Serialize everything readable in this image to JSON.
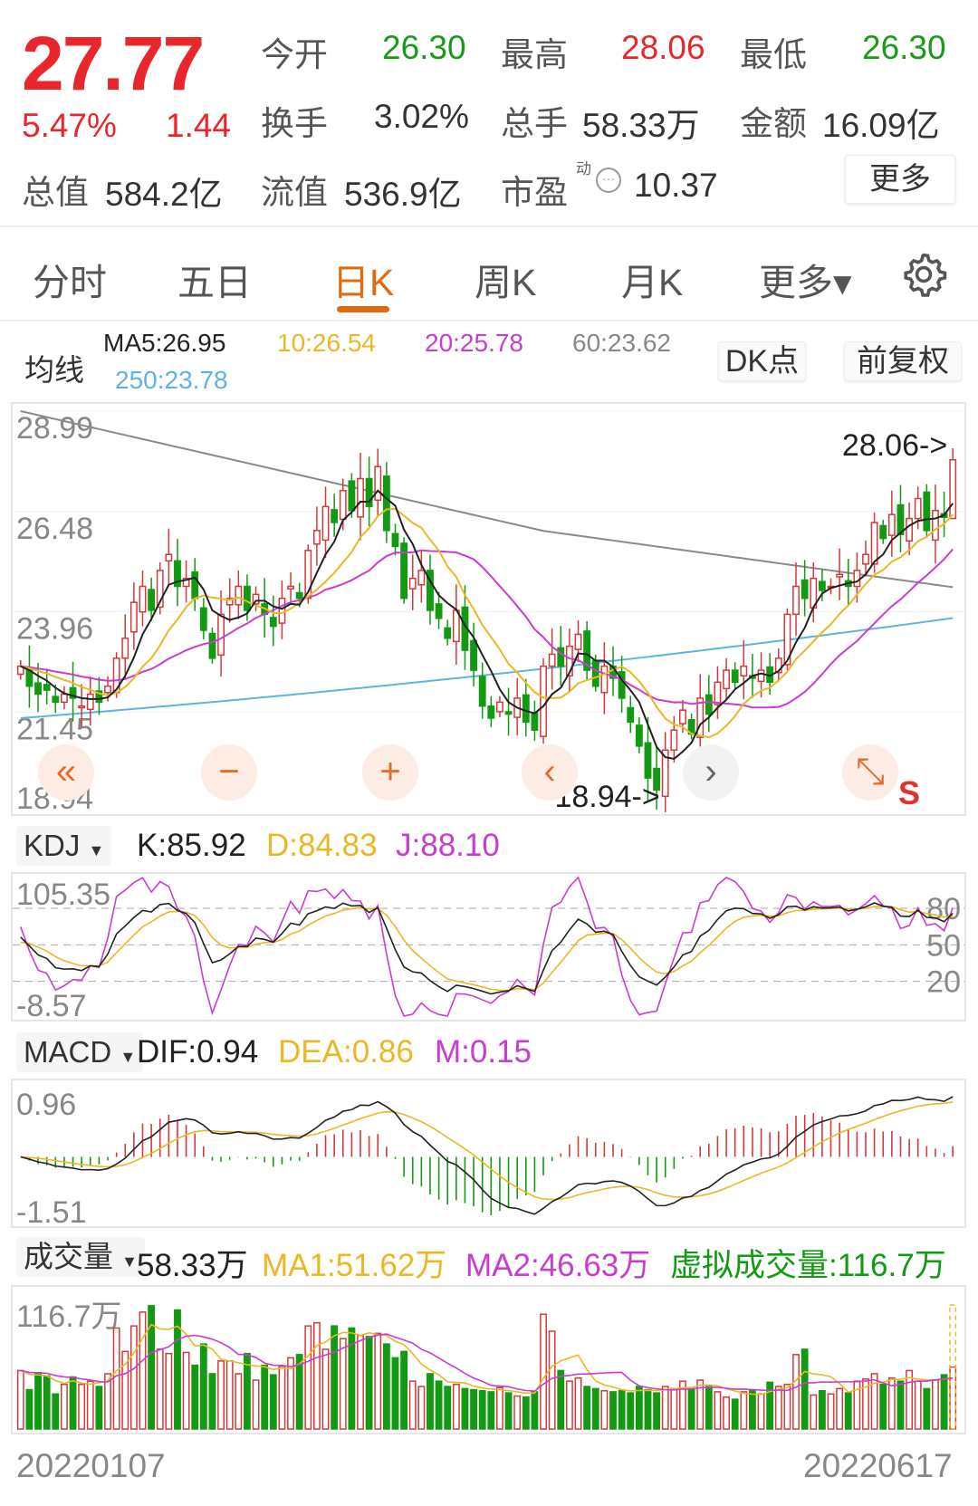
{
  "quote": {
    "price": "27.77",
    "change_pct": "5.47%",
    "change": "1.44",
    "open_label": "今开",
    "open": "26.30",
    "high_label": "最高",
    "high": "28.06",
    "low_label": "最低",
    "low": "26.30",
    "turnover_label": "换手",
    "turnover": "3.02%",
    "volume_label": "总手",
    "volume": "58.33万",
    "amount_label": "金额",
    "amount": "16.09亿",
    "mktcap_label": "总值",
    "mktcap": "584.2亿",
    "float_label": "流值",
    "float": "536.9亿",
    "pe_label": "市盈",
    "pe_sup": "动",
    "pe": "10.37",
    "more": "更多"
  },
  "tabs": [
    {
      "label": "分时"
    },
    {
      "label": "五日"
    },
    {
      "label": "日K",
      "active": true
    },
    {
      "label": "周K"
    },
    {
      "label": "月K"
    },
    {
      "label": "更多▾"
    }
  ],
  "ma": {
    "label": "均线",
    "ma5": "MA5:26.95",
    "ma10": "10:26.54",
    "ma20": "20:25.78",
    "ma60": "60:23.62",
    "ma250": "250:23.78",
    "dk": "DK点",
    "adjust": "前复权"
  },
  "colors": {
    "up": "#d23a3a",
    "down": "#129a12",
    "ma5": "#222222",
    "ma10": "#e9b824",
    "ma20": "#c93cd0",
    "ma60": "#8a8a8a",
    "ma250": "#5fb3e0",
    "accent": "#e06a10"
  },
  "chart_data": [
    {
      "type": "candlestick",
      "y_ticks": [
        "28.99",
        "26.48",
        "23.96",
        "21.45",
        "18.94"
      ],
      "ylim": [
        18.94,
        28.99
      ],
      "high_marker": "28.06->",
      "low_marker": "18.94->",
      "last_day": {
        "open": 26.3,
        "high": 28.06,
        "low": 26.3,
        "close": 27.77
      },
      "close": [
        22.6,
        22.1,
        21.9,
        22.0,
        21.7,
        21.9,
        21.8,
        21.6,
        21.9,
        21.7,
        22.1,
        22.8,
        23.3,
        24.2,
        24.6,
        24.0,
        25.0,
        25.4,
        24.6,
        24.8,
        24.3,
        23.5,
        22.8,
        23.9,
        24.3,
        24.6,
        24.0,
        24.4,
        23.9,
        23.6,
        24.3,
        24.6,
        24.3,
        25.5,
        26.0,
        26.6,
        26.2,
        27.0,
        26.5,
        27.3,
        26.6,
        27.6,
        26.0,
        25.6,
        24.3,
        24.8,
        25.0,
        24.0,
        23.8,
        23.3,
        24.0,
        23.0,
        22.5,
        21.6,
        21.3,
        21.7,
        21.4,
        21.8,
        21.2,
        21.0,
        22.6,
        22.9,
        22.6,
        23.1,
        23.4,
        22.5,
        22.1,
        22.6,
        22.3,
        21.8,
        21.2,
        20.6,
        19.8,
        19.5,
        20.5,
        21.0,
        21.5,
        20.9,
        21.8,
        21.4,
        22.2,
        22.5,
        22.2,
        22.6,
        22.3,
        22.5,
        22.2,
        22.8,
        23.9,
        24.6,
        24.3,
        24.8,
        24.5,
        24.6,
        24.9,
        24.6,
        25.0,
        25.4,
        26.2,
        25.8,
        26.4,
        25.9,
        26.3,
        26.8,
        26.0,
        26.5,
        26.33,
        27.77
      ],
      "x_start": "20220107",
      "x_end": "20220617"
    },
    {
      "type": "line",
      "indicator": "KDJ",
      "y_ticks": [
        "105.35",
        "-8.57"
      ],
      "levels": [
        80,
        50,
        20
      ],
      "ylim": [
        -8.57,
        105.35
      ],
      "K": "K:85.92",
      "D": "D:84.83",
      "J": "J:88.10"
    },
    {
      "type": "bar+line",
      "indicator": "MACD",
      "y_ticks": [
        "0.96",
        "-1.51"
      ],
      "ylim": [
        -1.51,
        0.96
      ],
      "DIF": "DIF:0.94",
      "DEA": "DEA:0.86",
      "M": "M:0.15"
    },
    {
      "type": "bar",
      "indicator": "成交量",
      "unit": "万",
      "y_ticks": [
        "116.7万"
      ],
      "ylim": [
        0,
        116.7
      ],
      "current": "58.33万",
      "MA1": "MA1:51.62万",
      "MA2": "MA2:46.63万",
      "virtual": "虚拟成交量:116.7万",
      "values": [
        55,
        37,
        53,
        50,
        33,
        42,
        49,
        42,
        45,
        40,
        52,
        95,
        73,
        97,
        110,
        116,
        75,
        71,
        112,
        72,
        60,
        80,
        52,
        64,
        64,
        52,
        71,
        46,
        60,
        51,
        59,
        67,
        70,
        97,
        100,
        75,
        97,
        85,
        95,
        88,
        87,
        90,
        80,
        67,
        73,
        45,
        40,
        52,
        45,
        40,
        42,
        38,
        37,
        36,
        35,
        39,
        34,
        31,
        30,
        35,
        108,
        92,
        55,
        45,
        48,
        40,
        38,
        36,
        35,
        36,
        34,
        40,
        37,
        34,
        40,
        38,
        45,
        38,
        46,
        40,
        35,
        30,
        28,
        35,
        36,
        33,
        44,
        40,
        42,
        70,
        75,
        32,
        36,
        33,
        38,
        34,
        45,
        47,
        52,
        42,
        48,
        45,
        55,
        45,
        38,
        46,
        51,
        58.33
      ]
    }
  ],
  "indicators": {
    "kdj": "KDJ",
    "macd": "MACD",
    "vol": "成交量"
  },
  "nav": {
    "back": "«",
    "zoom_out": "−",
    "zoom_in": "+",
    "prev": "‹",
    "next": "›",
    "expand": "⤡",
    "s": "S"
  }
}
